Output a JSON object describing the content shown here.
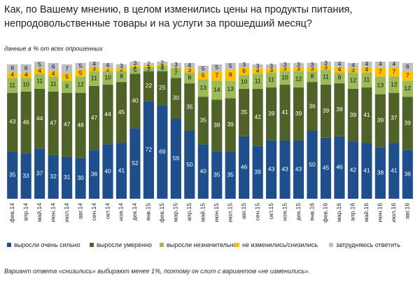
{
  "chart_data": {
    "type": "stacked_bar",
    "title": [
      "Как, по Вашему мнению, в целом изменились цены  на продукты питания,",
      "непродовольственные товары  и на услуги за прошедший месяц?"
    ],
    "subtitle": "данные в % от всех опрошенных",
    "note": "Вариант ответа «снизились» выбирают менее 1%, поэтому он слит с вариантом «не изменились».",
    "categories": [
      "фев.14",
      "апр.14",
      "май.14",
      "июн.14",
      "июл.14",
      "авг.14",
      "сен.14",
      "окт.14",
      "ноя.14",
      "дек.14",
      "янв.15",
      "фев.15",
      "мар.15",
      "апр.15",
      "май.15",
      "июн.15",
      "июл.15",
      "авг.15",
      "сен.15",
      "окт.15",
      "ноя.15",
      "дек.15",
      "янв.16",
      "фев.16",
      "мар.16",
      "апр.16",
      "май.16",
      "июн.16",
      "июл.16",
      "авг.16"
    ],
    "ylim": [
      0,
      100
    ],
    "series": [
      {
        "name": "выросли очень сильно",
        "color": "#1f4e8c",
        "values": [
          35,
          33,
          37,
          32,
          31,
          30,
          36,
          40,
          41,
          52,
          72,
          69,
          59,
          50,
          40,
          35,
          35,
          46,
          39,
          43,
          43,
          43,
          50,
          45,
          46,
          42,
          41,
          38,
          41,
          36
        ]
      },
      {
        "name": "выросли умеренно",
        "color": "#4f6228",
        "values": [
          43,
          46,
          44,
          47,
          47,
          48,
          47,
          44,
          45,
          40,
          22,
          25,
          30,
          35,
          35,
          38,
          39,
          35,
          42,
          39,
          41,
          39,
          36,
          39,
          39,
          39,
          41,
          39,
          37,
          39
        ]
      },
      {
        "name": "выросли незначительно",
        "color": "#9bbb59",
        "values": [
          11,
          10,
          11,
          11,
          9,
          12,
          11,
          10,
          8,
          5,
          3,
          4,
          7,
          8,
          13,
          14,
          13,
          10,
          11,
          11,
          10,
          12,
          8,
          11,
          8,
          12,
          11,
          13,
          12,
          12
        ]
      },
      {
        "name": "не изменились/снизились",
        "color": "#ffc000",
        "values": [
          4,
          4,
          4,
          4,
          5,
          5,
          3,
          2,
          2,
          1,
          1,
          1,
          1,
          3,
          5,
          7,
          8,
          6,
          4,
          3,
          3,
          3,
          3,
          3,
          4,
          3,
          4,
          7,
          7,
          7
        ]
      },
      {
        "name": "затрудняюсь ответить",
        "color": "#bfbfbf",
        "values": [
          6,
          6,
          5,
          6,
          7,
          5,
          4,
          4,
          3,
          3,
          2,
          2,
          3,
          4,
          5,
          5,
          5,
          3,
          3,
          3,
          3,
          3,
          3,
          3,
          4,
          4,
          4,
          4,
          4,
          6
        ]
      }
    ]
  }
}
